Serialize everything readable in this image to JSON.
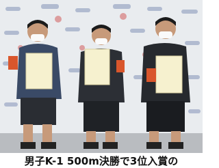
{
  "caption": "男子K-1 500m決勝で3位入賞の"
}
